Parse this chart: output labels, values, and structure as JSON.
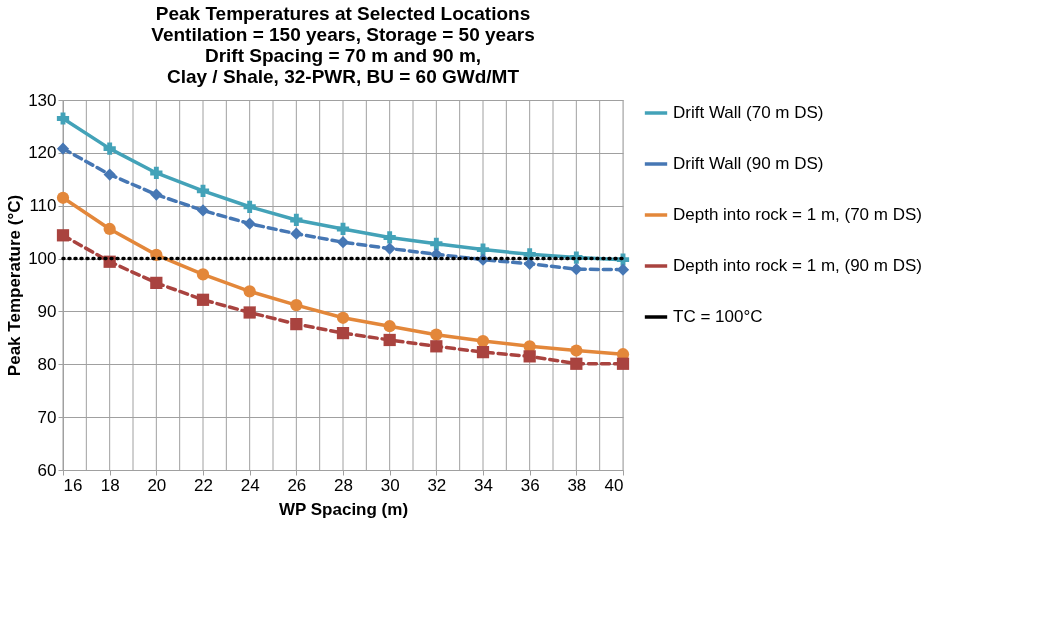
{
  "chart_data": {
    "type": "line",
    "title": [
      "Peak Temperatures at Selected Locations",
      "Ventilation = 150 years, Storage = 50 years",
      "Drift Spacing = 70 m and 90 m,",
      "Clay / Shale, 32-PWR, BU = 60 GWd/MT"
    ],
    "xlabel": "WP Spacing (m)",
    "ylabel": "Peak Temperature (°C)",
    "x": [
      16,
      18,
      20,
      22,
      24,
      26,
      28,
      30,
      32,
      34,
      36,
      38,
      40
    ],
    "series": [
      {
        "name": "Drift Wall (70 m DS)",
        "color": "#43a2b8",
        "marker": "cross",
        "line_style": "solid",
        "values": [
          126.5,
          120.8,
          116.2,
          112.8,
          109.8,
          107.3,
          105.6,
          104,
          102.8,
          101.7,
          100.8,
          100.2,
          99.8
        ]
      },
      {
        "name": "Drift Wall (90 m DS)",
        "color": "#4677b4",
        "marker": "diamond",
        "line_style": "dashed",
        "values": [
          120.8,
          115.9,
          112.1,
          109.1,
          106.6,
          104.7,
          103.1,
          101.9,
          100.8,
          99.8,
          99,
          98,
          97.9
        ]
      },
      {
        "name": "Depth into rock = 1 m, (70 m DS)",
        "color": "#e3873a",
        "marker": "circle",
        "line_style": "solid",
        "values": [
          111.5,
          105.6,
          100.7,
          97,
          93.8,
          91.2,
          88.8,
          87.2,
          85.6,
          84.4,
          83.4,
          82.6,
          81.9
        ]
      },
      {
        "name": "Depth into rock = 1 m, (90 m DS)",
        "color": "#a9433f",
        "marker": "square",
        "line_style": "dashed",
        "values": [
          104.4,
          99.4,
          95.4,
          92.2,
          89.8,
          87.6,
          85.9,
          84.6,
          83.4,
          82.3,
          81.5,
          80.1,
          80.1
        ]
      },
      {
        "name": "TC = 100°C",
        "color": "#000000",
        "marker": "none",
        "line_style": "dotted",
        "values": [
          100,
          100,
          100,
          100,
          100,
          100,
          100,
          100,
          100,
          100,
          100,
          100,
          100
        ]
      }
    ],
    "xlim": [
      16,
      40
    ],
    "xticks": [
      16,
      {
        "value": 17,
        "label": null
      },
      18,
      {
        "value": 19,
        "label": null
      },
      20,
      {
        "value": 21,
        "label": null
      },
      22,
      {
        "value": 23,
        "label": null
      },
      24,
      {
        "value": 25,
        "label": null
      },
      26,
      {
        "value": 27,
        "label": null
      },
      28,
      {
        "value": 29,
        "label": null
      },
      30,
      {
        "value": 31,
        "label": null
      },
      32,
      {
        "value": 33,
        "label": null
      },
      34,
      {
        "value": 35,
        "label": null
      },
      36,
      {
        "value": 37,
        "label": null
      },
      38,
      {
        "value": 39,
        "label": null
      },
      40
    ],
    "ylim": [
      60,
      130
    ],
    "yticks": [
      60,
      70,
      80,
      90,
      100,
      110,
      120,
      130
    ],
    "grid": true,
    "legend": "right"
  }
}
